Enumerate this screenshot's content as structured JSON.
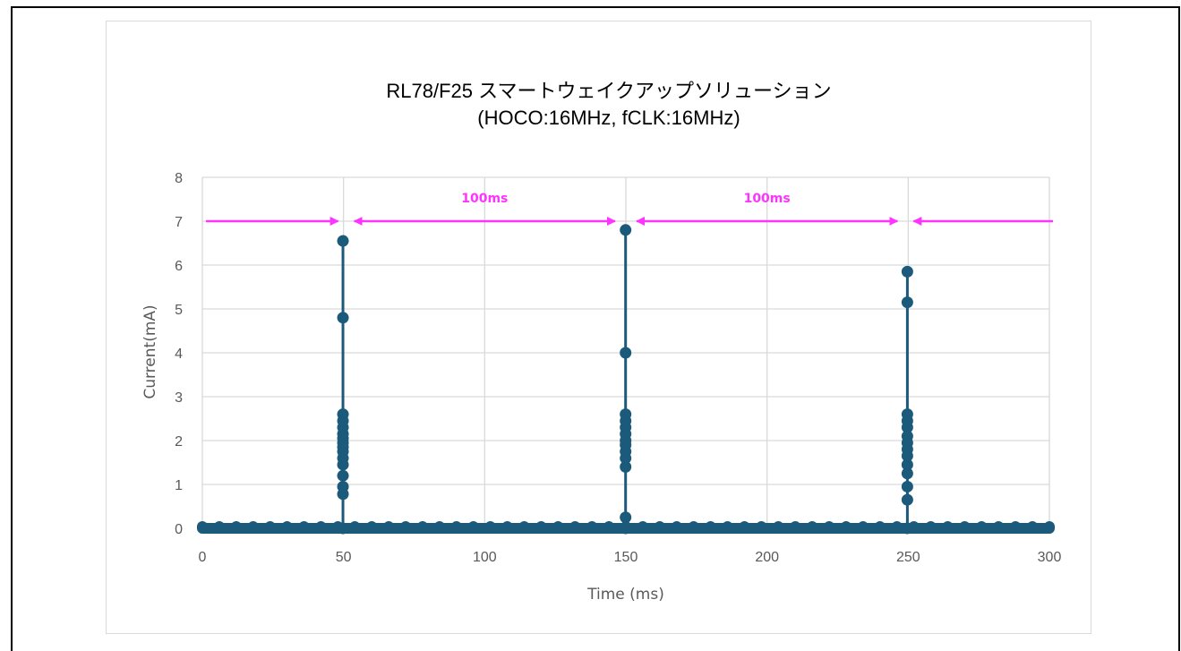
{
  "chart_data": {
    "type": "scatter",
    "title": "RL78/F25 スマートウェイクアップソリューション",
    "subtitle": "(HOCO:16MHz,  fCLK:16MHz)",
    "xlabel": "Time (ms)",
    "ylabel": "Current(mA)",
    "xlim": [
      0,
      300
    ],
    "ylim": [
      0,
      8
    ],
    "xticks": [
      "0",
      "50",
      "100",
      "150",
      "200",
      "250",
      "300"
    ],
    "yticks": [
      "0",
      "1",
      "2",
      "3",
      "4",
      "5",
      "6",
      "7",
      "8"
    ],
    "grid": true,
    "series_color": "#1b5a7a",
    "baseline": {
      "y": 0.0,
      "x_range": [
        0,
        300
      ]
    },
    "spikes": [
      {
        "x": 49.8,
        "y": [
          0.0,
          0.78,
          0.95,
          1.2,
          1.45,
          1.6,
          1.75,
          1.85,
          1.95,
          2.05,
          2.15,
          2.3,
          2.45,
          2.6,
          4.8,
          6.55
        ]
      },
      {
        "x": 149.9,
        "y": [
          0.0,
          0.25,
          1.4,
          1.6,
          1.75,
          1.9,
          2.0,
          2.15,
          2.3,
          2.45,
          2.6,
          4.0,
          6.8
        ]
      },
      {
        "x": 249.7,
        "y": [
          0.0,
          0.65,
          0.95,
          1.25,
          1.45,
          1.65,
          1.8,
          1.95,
          2.1,
          2.3,
          2.45,
          2.6,
          5.15,
          5.85
        ]
      }
    ],
    "annotations": [
      {
        "text": "100ms",
        "from_x": 50,
        "to_x": 150,
        "y": 7,
        "color": "#ff33ff"
      },
      {
        "text": "100ms",
        "from_x": 150,
        "to_x": 250,
        "y": 7,
        "color": "#ff33ff"
      }
    ],
    "arrow_color": "#ff33ff"
  }
}
